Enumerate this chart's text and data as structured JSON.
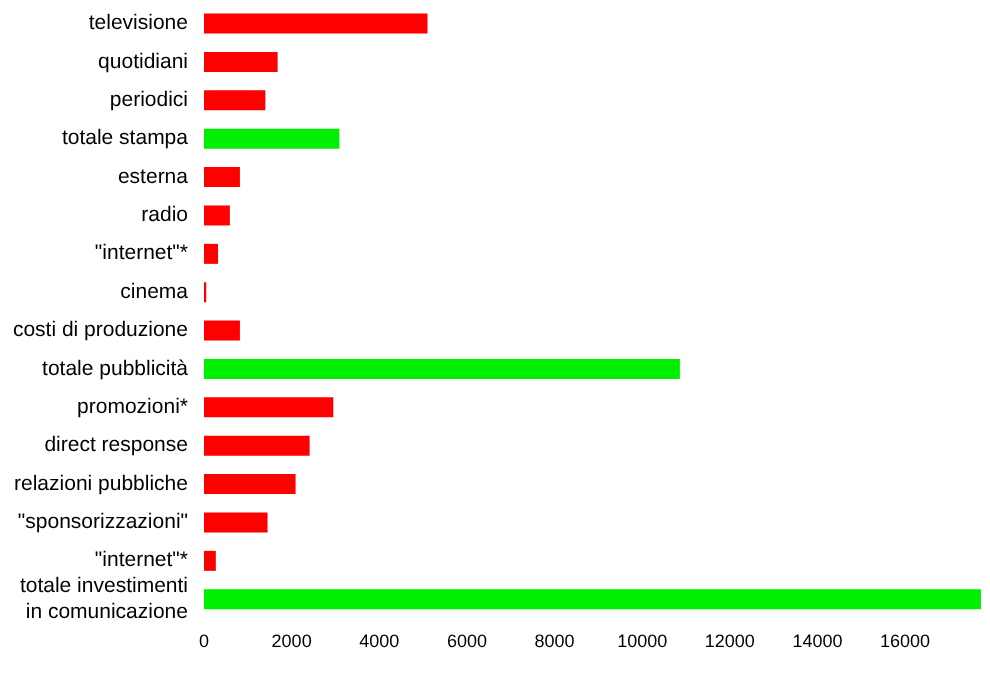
{
  "chart_data": {
    "type": "bar",
    "orientation": "horizontal",
    "categories": [
      "televisione",
      "quotidiani",
      "periodici",
      "totale stampa",
      "esterna",
      "radio",
      "\"internet\"*",
      "cinema",
      "costi di produzione",
      "totale pubblicità",
      "promozioni*",
      "direct response",
      "relazioni pubbliche",
      "\"sponsorizzazioni\"",
      "\"internet\"*",
      "totale investimenti in comunicazione"
    ],
    "values": [
      5100,
      1680,
      1400,
      3090,
      820,
      590,
      320,
      50,
      820,
      10860,
      2950,
      2410,
      2090,
      1450,
      270,
      17730
    ],
    "colors": [
      "#ff0000",
      "#ff0000",
      "#ff0000",
      "#00ee00",
      "#ff0000",
      "#ff0000",
      "#ff0000",
      "#ff0000",
      "#ff0000",
      "#00ee00",
      "#ff0000",
      "#ff0000",
      "#ff0000",
      "#ff0000",
      "#ff0000",
      "#00ee00"
    ],
    "xlim": [
      0,
      17800
    ],
    "xticks": [
      0,
      2000,
      4000,
      6000,
      8000,
      10000,
      12000,
      14000,
      16000
    ],
    "grid": false,
    "legend": false
  }
}
